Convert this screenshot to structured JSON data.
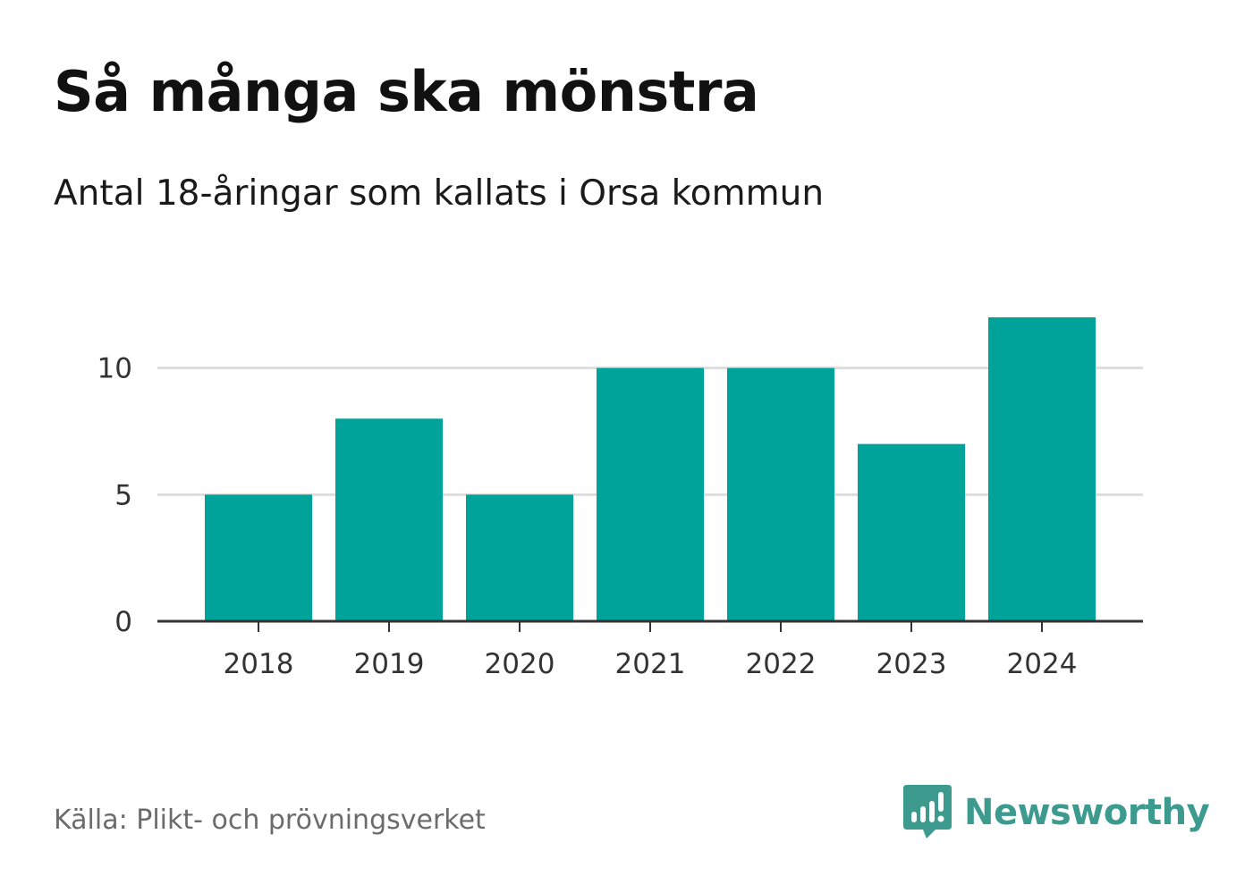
{
  "header": {
    "title": "Så många ska mönstra",
    "subtitle": "Antal 18-åringar som kallats i Orsa kommun"
  },
  "footer": {
    "source": "Källa: Plikt- och prövningsverket",
    "brand_name": "Newsworthy",
    "brand_icon": "bar-chart-icon",
    "brand_color": "#3d9a8e"
  },
  "chart_data": {
    "type": "bar",
    "title": "Så många ska mönstra",
    "subtitle": "Antal 18-åringar som kallats i Orsa kommun",
    "categories": [
      "2018",
      "2019",
      "2020",
      "2021",
      "2022",
      "2023",
      "2024"
    ],
    "values": [
      5,
      8,
      5,
      10,
      10,
      7,
      12
    ],
    "xlabel": "",
    "ylabel": "",
    "ylim": [
      0,
      12
    ],
    "yticks": [
      0,
      5,
      10
    ],
    "grid": true,
    "bar_color": "#00a39a",
    "grid_color": "#dddddd",
    "axis_color": "#333333"
  }
}
